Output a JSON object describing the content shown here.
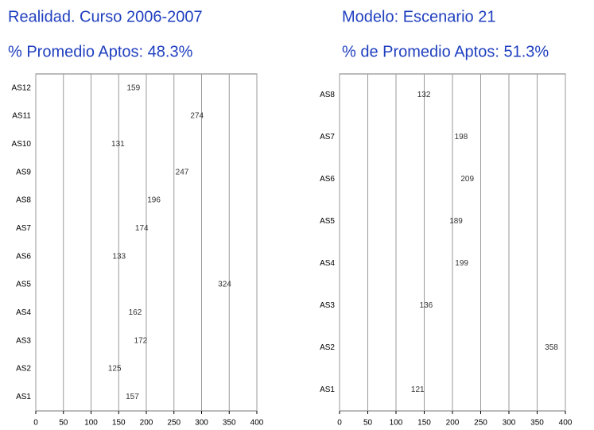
{
  "chart_data": [
    {
      "type": "bar",
      "orientation": "horizontal",
      "title": "Realidad. Curso 2006-2007",
      "subtitle": "% Promedio Aptos: 48.3%",
      "categories": [
        "AS12",
        "AS11",
        "AS10",
        "AS9",
        "AS8",
        "AS7",
        "AS6",
        "AS5",
        "AS4",
        "AS3",
        "AS2",
        "AS1"
      ],
      "values": [
        159,
        274,
        131,
        247,
        196,
        174,
        133,
        324,
        162,
        172,
        125,
        157
      ],
      "color": "#bfe3e8",
      "xlim": [
        0,
        400
      ],
      "xticks": [
        0,
        50,
        100,
        150,
        200,
        250,
        300,
        350,
        400
      ],
      "grid": true
    },
    {
      "type": "bar",
      "orientation": "horizontal",
      "title": "Modelo: Escenario 21",
      "subtitle": "% de Promedio Aptos: 51.3%",
      "categories": [
        "AS8",
        "AS7",
        "AS6",
        "AS5",
        "AS4",
        "AS3",
        "AS2",
        "AS1"
      ],
      "values": [
        132,
        198,
        209,
        189,
        199,
        136,
        358,
        121
      ],
      "colors": [
        "#ff9900",
        "#0000ff",
        "#0000ff",
        "#0000ff",
        "#0000ff",
        "#ff9900",
        "#99cc00",
        "#ff9900"
      ],
      "xlim": [
        0,
        400
      ],
      "xticks": [
        0,
        50,
        100,
        150,
        200,
        250,
        300,
        350,
        400
      ],
      "grid": true
    }
  ]
}
